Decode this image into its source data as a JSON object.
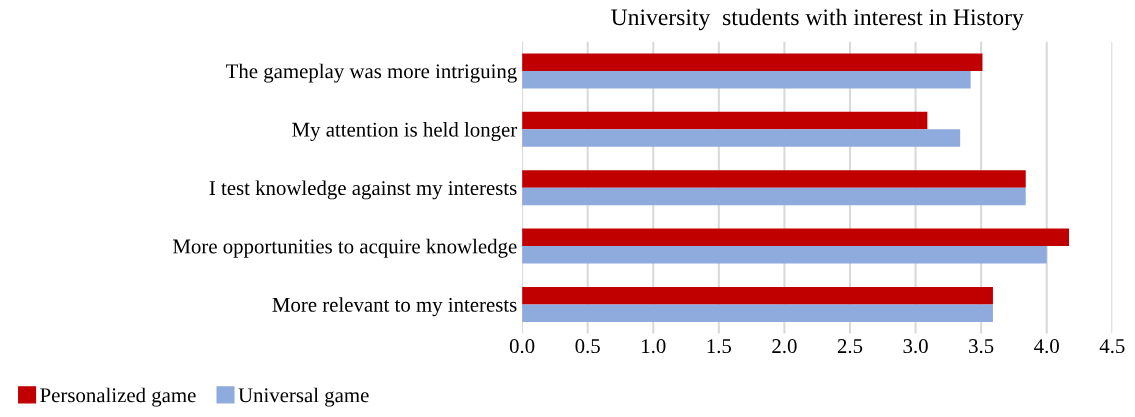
{
  "chart_data": {
    "type": "bar",
    "orientation": "horizontal",
    "title": "University  students with interest in History",
    "categories": [
      "The gameplay was more intriguing",
      "My attention is held longer",
      "I test knowledge against my interests",
      "More opportunities to acquire knowledge",
      "More relevant to my interests"
    ],
    "series": [
      {
        "name": "Personalized game",
        "color": "#c00000",
        "values": [
          3.51,
          3.09,
          3.84,
          4.17,
          3.59
        ]
      },
      {
        "name": "Universal game",
        "color": "#8faadc",
        "values": [
          3.42,
          3.34,
          3.84,
          4.0,
          3.59
        ]
      }
    ],
    "xlim": [
      0,
      4.5
    ],
    "xticks": [
      {
        "value": 0,
        "label": "0.0"
      },
      0.5,
      {
        "value": 1,
        "label": "1.0"
      },
      1.5,
      {
        "value": 2,
        "label": "2.0"
      },
      2.5,
      {
        "value": 3,
        "label": "3.0"
      },
      3.5,
      {
        "value": 4,
        "label": "4.0"
      },
      4.5
    ],
    "grid": "x",
    "legend": "bottom left"
  }
}
